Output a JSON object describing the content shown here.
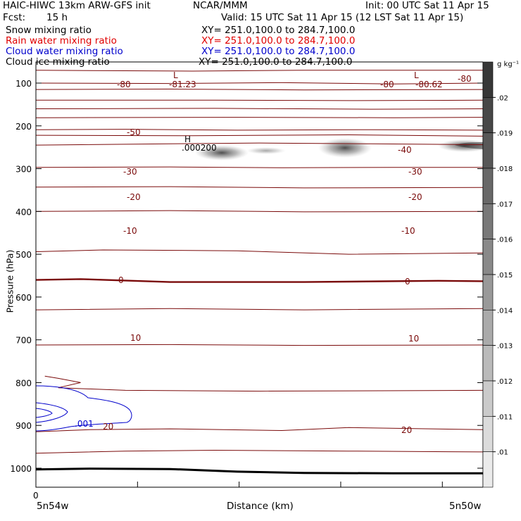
{
  "header": {
    "title_left": "HAIC-HIWC 13km ARW-GFS init",
    "title_mid": "NCAR/MMM",
    "init": "Init: 00 UTC Sat 11 Apr 15",
    "fcst_label": "Fcst:",
    "fcst_value": "15 h",
    "valid": "Valid: 15 UTC Sat 11 Apr 15 (12 LST Sat 11 Apr 15)"
  },
  "fields": [
    {
      "label": "Snow mixing ratio",
      "xy": "XY= 251.0,100.0 to 284.7,100.0",
      "color": "#000000"
    },
    {
      "label": "Rain water mixing ratio",
      "xy": "XY= 251.0,100.0 to 284.7,100.0",
      "color": "#e00000"
    },
    {
      "label": "Cloud water mixing ratio",
      "xy": "XY= 251.0,100.0 to 284.7,100.0",
      "color": "#0000cc"
    },
    {
      "label": "Cloud ice mixing ratio",
      "xy": "XY= 251.0,100.0 to 284.7,100.0",
      "color": "#000000"
    }
  ],
  "chart_data": {
    "type": "contour-cross-section",
    "ylabel": "Pressure (hPa)",
    "xlabel": "Distance (km)",
    "y_ticks": [
      100,
      200,
      300,
      400,
      500,
      600,
      700,
      800,
      900,
      1000
    ],
    "x_start_label": "0",
    "x_left_label": "5n54w",
    "x_right_label": "5n50w",
    "y_range": [
      50,
      1035
    ],
    "temperature_contours_C": [
      {
        "value": -80,
        "label": "-80"
      },
      {
        "value": -50,
        "label": "-50"
      },
      {
        "value": -40,
        "label": "-40"
      },
      {
        "value": -30,
        "label": "-30"
      },
      {
        "value": -20,
        "label": "-20"
      },
      {
        "value": -10,
        "label": "-10"
      },
      {
        "value": 0,
        "label": "0"
      },
      {
        "value": 10,
        "label": "10"
      },
      {
        "value": 20,
        "label": "20"
      }
    ],
    "annotations": [
      {
        "text": "L",
        "pressure": 65,
        "x_frac": 0.335
      },
      {
        "text": "-81.23",
        "pressure": 101,
        "x_frac": 0.3
      },
      {
        "text": "L",
        "pressure": 65,
        "x_frac": 0.94
      },
      {
        "text": "-80.62",
        "pressure": 101,
        "x_frac": 0.88
      },
      {
        "text": "H",
        "pressure": 226,
        "x_frac": 0.3
      },
      {
        "text": ".000200",
        "pressure": 238,
        "x_frac": 0.33
      },
      {
        "text": ".001",
        "pressure": 887,
        "x_frac": 0.11
      }
    ],
    "colorbar": {
      "unit": "g kg⁻¹",
      "labels": [
        ".02",
        ".019",
        ".018",
        ".017",
        ".016",
        ".015",
        ".014",
        ".013",
        ".012",
        ".011",
        ".01"
      ]
    },
    "colors": {
      "temperature": "#7a0a0a",
      "cloud_water": "#0000cc",
      "surface": "#000000"
    }
  }
}
